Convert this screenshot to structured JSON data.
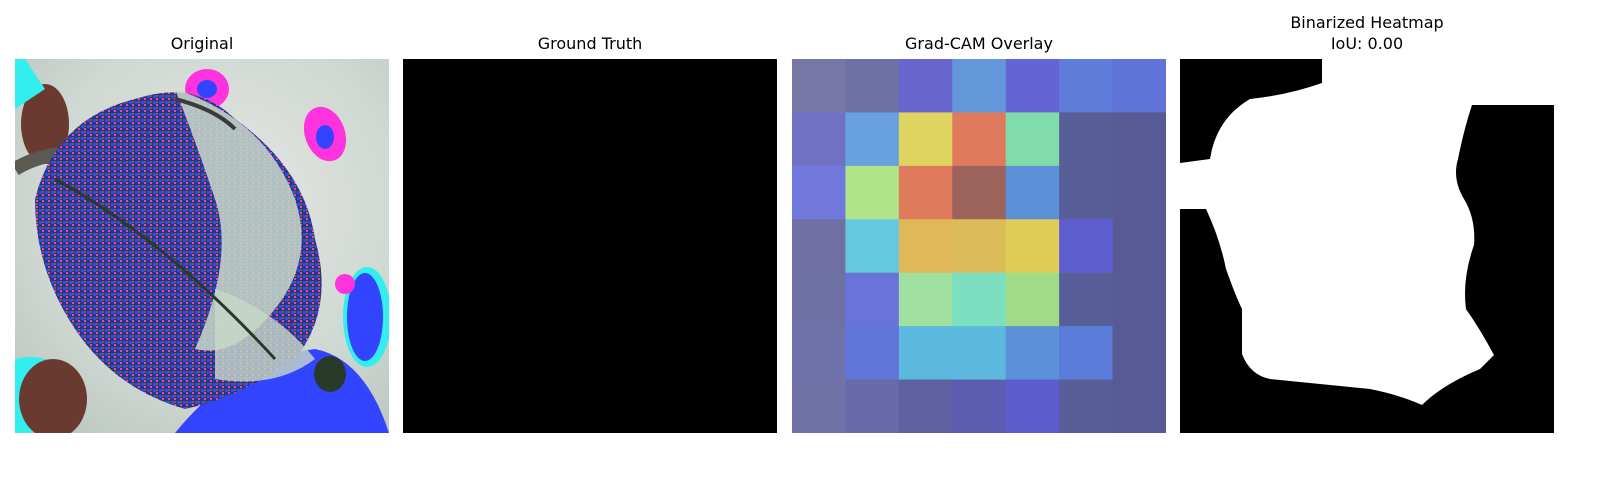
{
  "panels": {
    "original": {
      "title": "Original"
    },
    "ground_truth": {
      "title": "Ground Truth"
    },
    "gradcam": {
      "title": "Grad-CAM Overlay",
      "grid_rows": 7,
      "grid_cols": 7,
      "cells": [
        [
          "#7878a8",
          "#6e70a6",
          "#6666cc",
          "#6496da",
          "#6464d6",
          "#5f7cd8",
          "#5f74d6"
        ],
        [
          "#7070c4",
          "#68a0e0",
          "#e0d460",
          "#e07a5c",
          "#80dca8",
          "#585e98",
          "#585a96"
        ],
        [
          "#7078dc",
          "#b0e488",
          "#e07a5c",
          "#9c625c",
          "#5c90d8",
          "#585e98",
          "#585a96"
        ],
        [
          "#7070a4",
          "#64c8e0",
          "#e0b858",
          "#dcbc58",
          "#e0cc58",
          "#5e5ed0",
          "#585a96"
        ],
        [
          "#6e70a6",
          "#6a74d8",
          "#a0e0a0",
          "#7ce0c0",
          "#a0dc88",
          "#585e98",
          "#585a96"
        ],
        [
          "#7072ac",
          "#5f76d8",
          "#5cb8dc",
          "#5cb8dc",
          "#5c90d8",
          "#5a7cd8",
          "#585a96"
        ],
        [
          "#7072a8",
          "#686aaa",
          "#5e60a0",
          "#5c5cb0",
          "#5c5cce",
          "#585e98",
          "#585a96"
        ]
      ]
    },
    "binarized": {
      "title_line1": "Binarized Heatmap",
      "title_line2": "IoU: 0.00"
    }
  },
  "colors": {
    "mask_foreground": "#ffffff",
    "mask_background": "#000000",
    "image_magenta": "#ff33dd",
    "image_blue": "#3344ff",
    "image_cyan": "#33eeee",
    "image_leaf": "#c8d8c8",
    "image_brown": "#6a3a30"
  }
}
